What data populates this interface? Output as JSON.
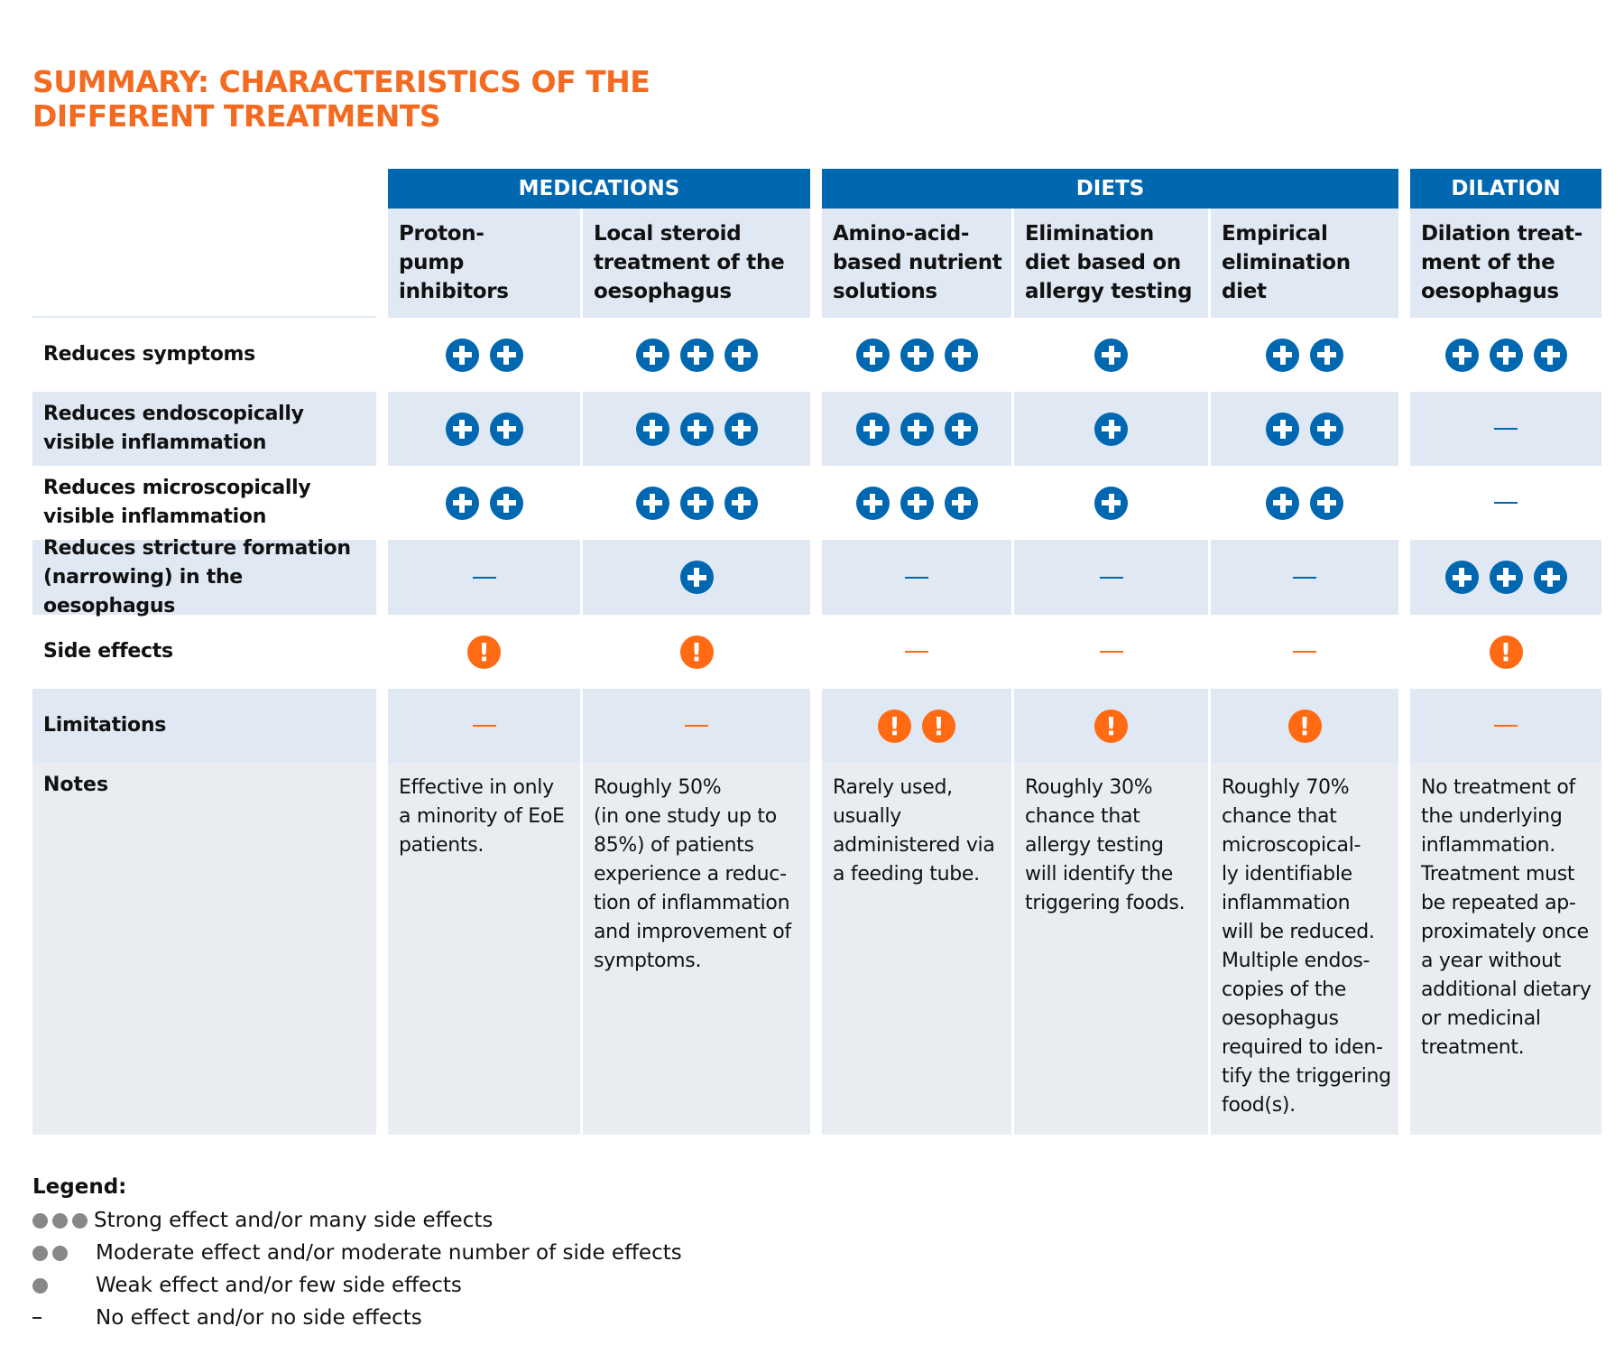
{
  "title": "SUMMARY: CHARACTERISTICS OF THE\nDIFFERENT TREATMENTS",
  "colors": {
    "title": "#f26b21",
    "header_blue": "#0067b1",
    "row_blue": "#dfe8f3",
    "notes_bg": "#e9edf1",
    "plus": "#0067b1",
    "warning": "#ff6a13",
    "legend_dot": "#888888"
  },
  "groups": [
    {
      "label": "MEDICATIONS"
    },
    {
      "label": "DIETS"
    },
    {
      "label": "DILATION"
    }
  ],
  "treatments": [
    "Proton-\npump\ninhibitors",
    "Local steroid\ntreatment of the\noesophagus",
    "Amino-acid-\nbased nutrient\nsolutions",
    "Elimination\ndiet based on\nallergy testing",
    "Empirical\nelimination\ndiet",
    "Dilation treat-\nment of the\noesophagus"
  ],
  "rows": [
    {
      "label": "Reduces symptoms",
      "icon": "plus",
      "values": [
        2,
        3,
        3,
        1,
        2,
        3
      ]
    },
    {
      "label": "Reduces endoscopically\nvisible inflammation",
      "icon": "plus",
      "values": [
        2,
        3,
        3,
        1,
        2,
        0
      ]
    },
    {
      "label": "Reduces microscopically\nvisible inflammation",
      "icon": "plus",
      "values": [
        2,
        3,
        3,
        1,
        2,
        0
      ]
    },
    {
      "label": "Reduces stricture formation\n(narrowing) in the oesophagus",
      "icon": "plus",
      "values": [
        0,
        1,
        0,
        0,
        0,
        3
      ]
    },
    {
      "label": "Side effects",
      "icon": "warning",
      "values": [
        1,
        1,
        0,
        0,
        0,
        1
      ]
    },
    {
      "label": "Limitations",
      "icon": "warning",
      "values": [
        0,
        0,
        2,
        1,
        1,
        0
      ]
    }
  ],
  "notes": {
    "label": "Notes",
    "values": [
      "Effective in only\na minority of EoE\npatients.",
      "Roughly 50%\n(in one study up to\n85%) of patients\nexperience a reduc-\ntion of inflammation\nand improvement of\nsymptoms.",
      "Rarely used,\nusually\nadministered via\na feeding tube.",
      "Roughly 30%\nchance that\nallergy testing\nwill identify the\ntriggering foods.",
      "Roughly 70%\nchance that\nmicroscopical-\nly identifiable\ninflammation\nwill be reduced.\nMultiple endos-\ncopies of the\noesophagus\nrequired to iden-\ntify the triggering\nfood(s).",
      "No treatment of\nthe underlying\ninflammation.\nTreatment must\nbe repeated ap-\nproximately once\na year without\nadditional dietary\nor medicinal\ntreatment."
    ]
  },
  "legend": {
    "heading": "Legend:",
    "items": [
      {
        "dots": 3,
        "label": "Strong effect and/or many side effects"
      },
      {
        "dots": 2,
        "label": "Moderate effect and/or moderate number of side effects"
      },
      {
        "dots": 1,
        "label": "Weak effect and/or few side effects"
      },
      {
        "dots": 0,
        "label": "No effect and/or no side effects"
      }
    ]
  }
}
